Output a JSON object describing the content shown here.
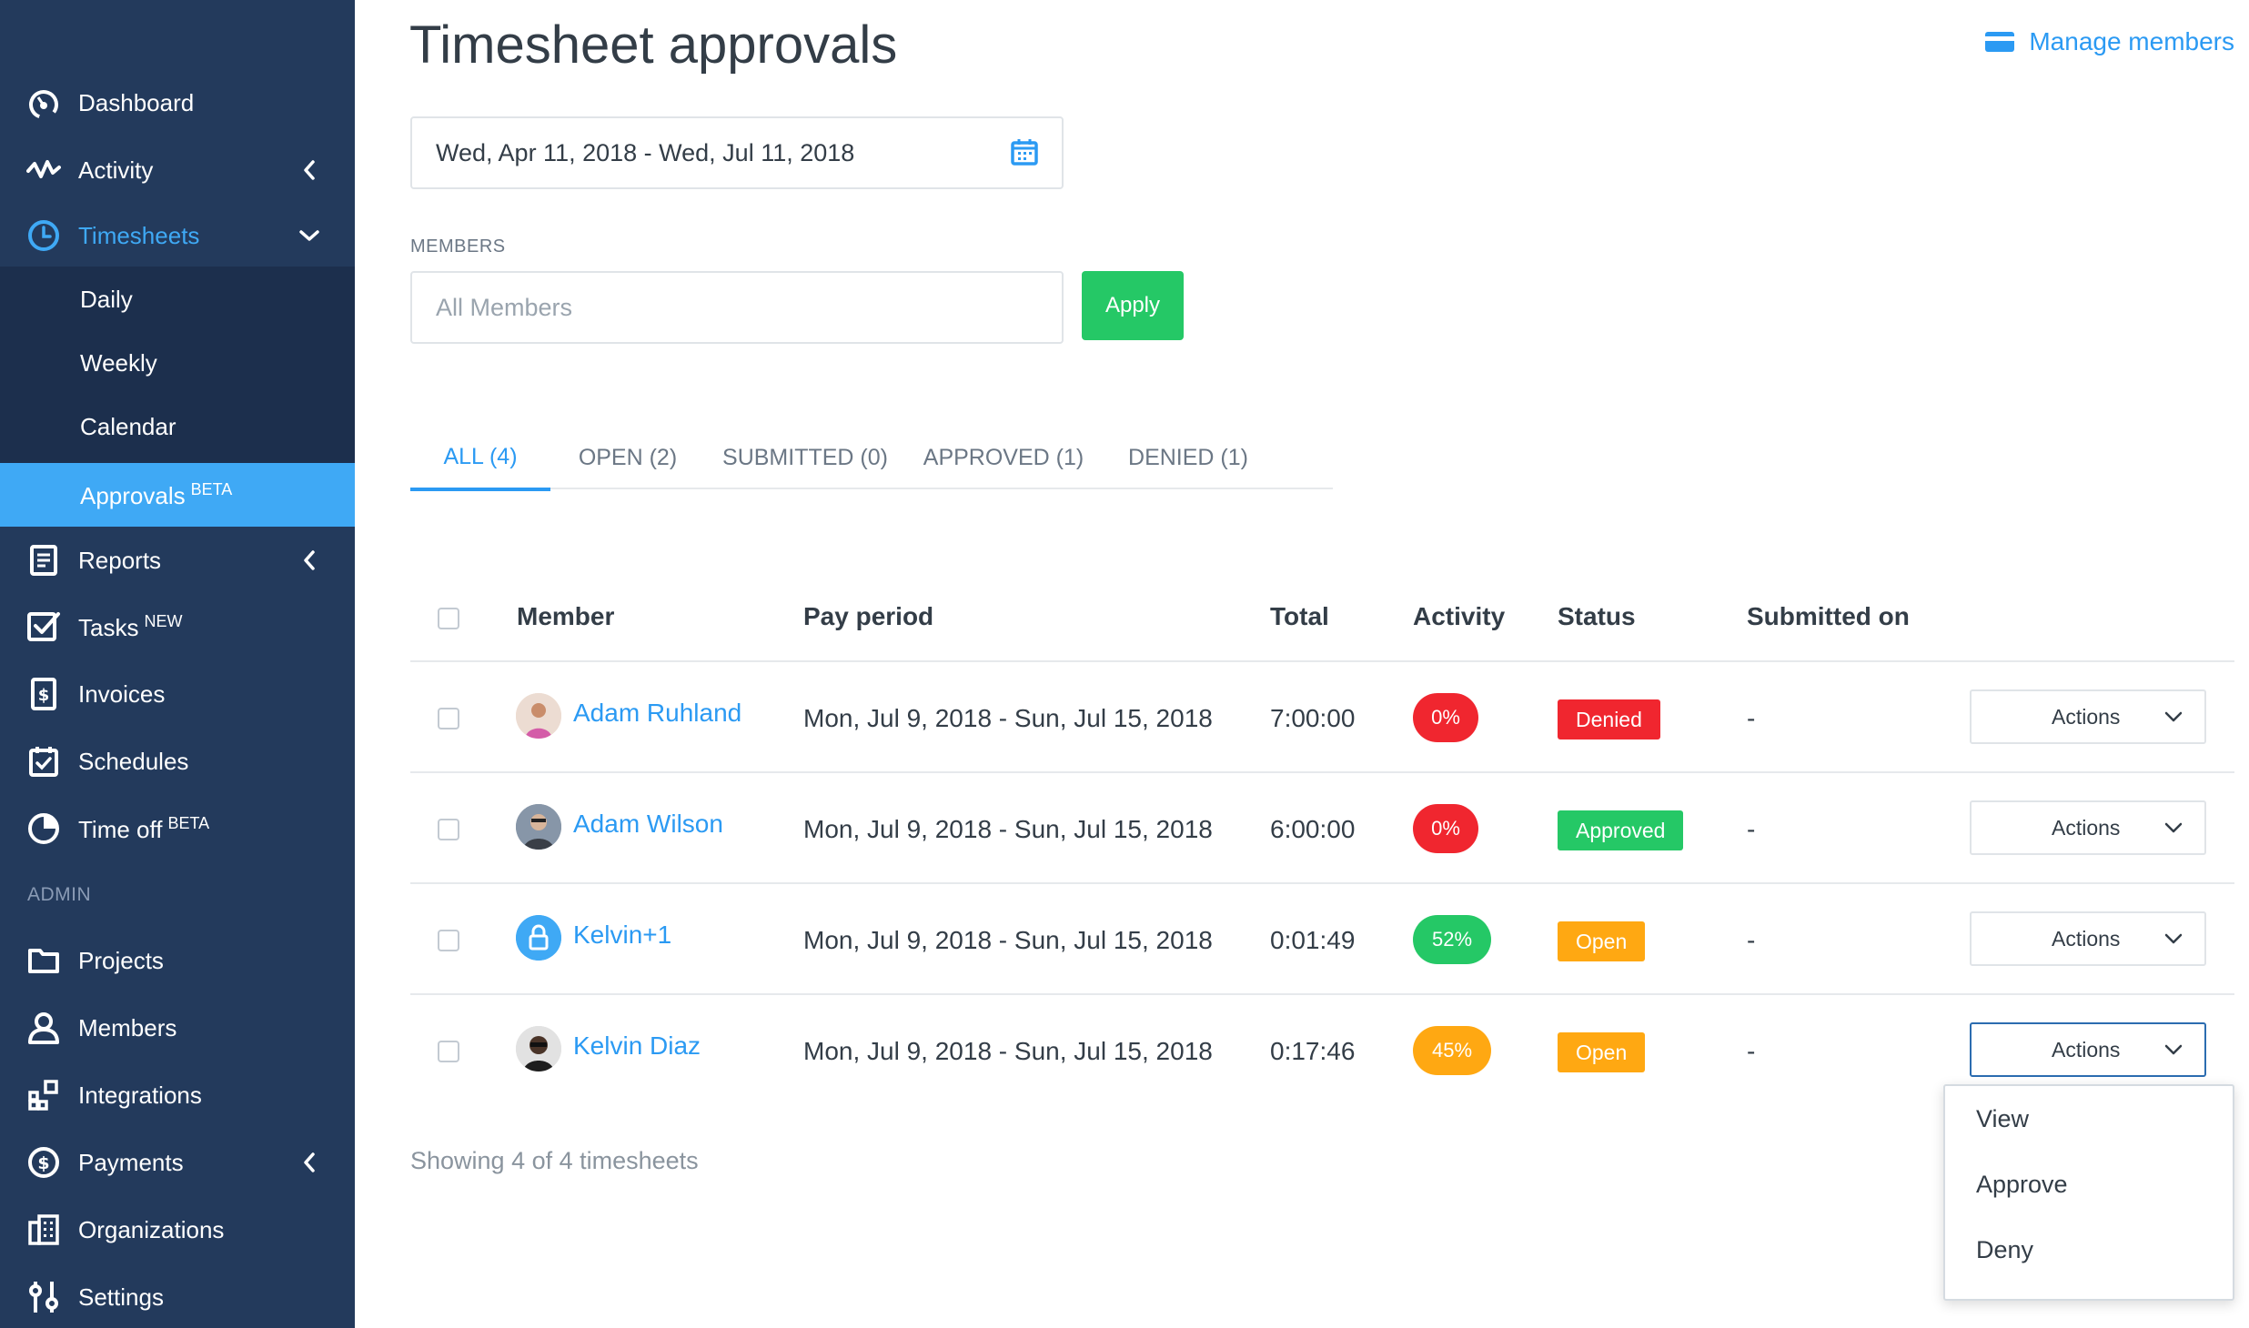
{
  "sidebar": {
    "items": [
      {
        "label": "Dashboard",
        "icon": "dashboard-icon"
      },
      {
        "label": "Activity",
        "icon": "activity-icon"
      },
      {
        "label": "Timesheets",
        "icon": "clock-icon"
      },
      {
        "label": "Reports",
        "icon": "report-icon"
      },
      {
        "label": "Tasks",
        "badge": "NEW",
        "icon": "checkbox-icon"
      },
      {
        "label": "Invoices",
        "icon": "invoice-icon"
      },
      {
        "label": "Schedules",
        "icon": "calendar-check-icon"
      },
      {
        "label": "Time off",
        "badge": "BETA",
        "icon": "pie-icon"
      }
    ],
    "timesheet_subitems": [
      {
        "label": "Daily"
      },
      {
        "label": "Weekly"
      },
      {
        "label": "Calendar"
      },
      {
        "label": "Approvals",
        "badge": "BETA"
      }
    ],
    "admin_label": "ADMIN",
    "admin_items": [
      {
        "label": "Projects",
        "icon": "folder-icon"
      },
      {
        "label": "Members",
        "icon": "user-icon"
      },
      {
        "label": "Integrations",
        "icon": "integrations-icon"
      },
      {
        "label": "Payments",
        "icon": "dollar-icon"
      },
      {
        "label": "Organizations",
        "icon": "building-icon"
      },
      {
        "label": "Settings",
        "icon": "sliders-icon"
      }
    ]
  },
  "header": {
    "title": "Timesheet approvals",
    "manage_members": "Manage members"
  },
  "filters": {
    "date_range": "Wed, Apr 11, 2018 - Wed, Jul 11, 2018",
    "members_label": "MEMBERS",
    "members_placeholder": "All Members",
    "apply_label": "Apply"
  },
  "tabs": [
    {
      "label": "ALL (4)"
    },
    {
      "label": "OPEN (2)"
    },
    {
      "label": "SUBMITTED (0)"
    },
    {
      "label": "APPROVED (1)"
    },
    {
      "label": "DENIED (1)"
    }
  ],
  "table": {
    "headers": {
      "member": "Member",
      "pay_period": "Pay period",
      "total": "Total",
      "activity": "Activity",
      "status": "Status",
      "submitted_on": "Submitted on"
    },
    "rows": [
      {
        "member": "Adam Ruhland",
        "pay_period": "Mon, Jul 9, 2018 - Sun, Jul 15, 2018",
        "total": "7:00:00",
        "activity": "0%",
        "activity_color": "#f0262f",
        "status": "Denied",
        "status_color": "#f0262f",
        "submitted_on": "-",
        "actions": "Actions"
      },
      {
        "member": "Adam Wilson",
        "pay_period": "Mon, Jul 9, 2018 - Sun, Jul 15, 2018",
        "total": "6:00:00",
        "activity": "0%",
        "activity_color": "#f0262f",
        "status": "Approved",
        "status_color": "#25c866",
        "submitted_on": "-",
        "actions": "Actions"
      },
      {
        "member": "Kelvin+1",
        "pay_period": "Mon, Jul 9, 2018 - Sun, Jul 15, 2018",
        "total": "0:01:49",
        "activity": "52%",
        "activity_color": "#25c866",
        "status": "Open",
        "status_color": "#ffa812",
        "submitted_on": "-",
        "actions": "Actions"
      },
      {
        "member": "Kelvin Diaz",
        "pay_period": "Mon, Jul 9, 2018 - Sun, Jul 15, 2018",
        "total": "0:17:46",
        "activity": "45%",
        "activity_color": "#ffa812",
        "status": "Open",
        "status_color": "#ffa812",
        "submitted_on": "-",
        "actions": "Actions"
      }
    ]
  },
  "footer": {
    "showing": "Showing 4 of 4 timesheets"
  },
  "dropdown": {
    "items": [
      {
        "label": "View"
      },
      {
        "label": "Approve"
      },
      {
        "label": "Deny"
      }
    ]
  },
  "colors": {
    "sidebar_bg": "#233a5c",
    "accent": "#2b9af3",
    "green": "#25c866",
    "red": "#f0262f",
    "orange": "#ffa812"
  }
}
